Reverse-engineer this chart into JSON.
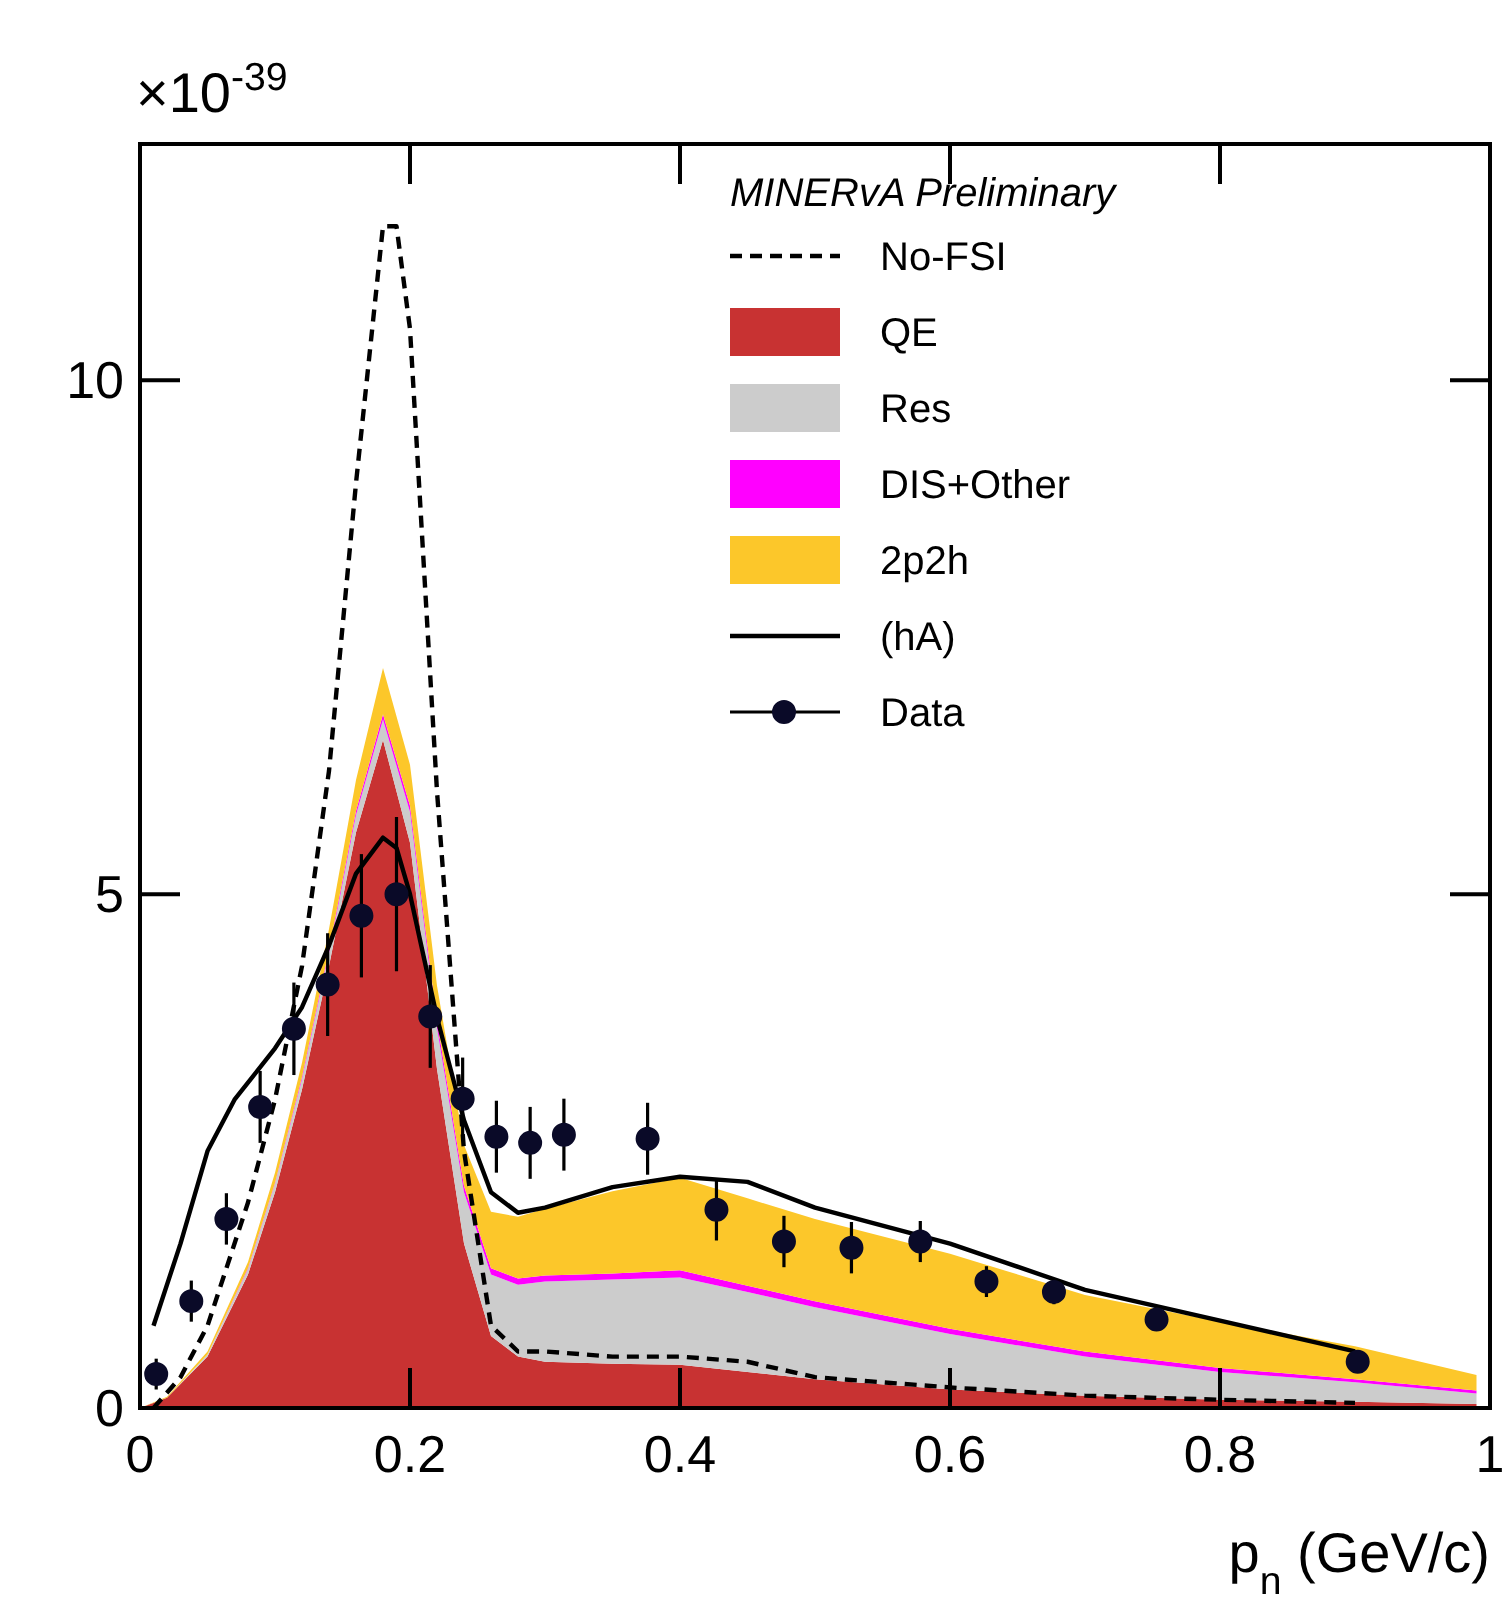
{
  "chart_data": {
    "type": "area",
    "stacked": true,
    "legend_title": "MINERvA Preliminary",
    "xlabel": "p$_{n}$ (GeV/c)",
    "annotations": [
      "×10$^{-39}$"
    ],
    "x": [
      0,
      0.02,
      0.05,
      0.08,
      0.1,
      0.12,
      0.14,
      0.16,
      0.18,
      0.2,
      0.22,
      0.24,
      0.26,
      0.28,
      0.3,
      0.35,
      0.4,
      0.45,
      0.5,
      0.6,
      0.7,
      0.8,
      0.9,
      0.99
    ],
    "xlim": [
      0,
      1
    ],
    "xticks": [
      0,
      0.2,
      0.4,
      0.6,
      0.8,
      1
    ],
    "ylim": [
      0,
      12.3
    ],
    "yticks": [
      0,
      5,
      10
    ],
    "grid": false,
    "legend": "top right",
    "series": [
      {
        "name": "No-FSI",
        "type": "line",
        "line_style": "dashed",
        "color": "#000000",
        "x": [
          0.01,
          0.03,
          0.05,
          0.08,
          0.1,
          0.12,
          0.14,
          0.16,
          0.18,
          0.19,
          0.2,
          0.22,
          0.24,
          0.26,
          0.28,
          0.3,
          0.35,
          0.4,
          0.45,
          0.5,
          0.6,
          0.7,
          0.8,
          0.9
        ],
        "values": [
          0,
          0.3,
          0.8,
          2.0,
          3.0,
          4.3,
          6.2,
          9.0,
          11.5,
          11.5,
          10.5,
          6.0,
          2.5,
          0.8,
          0.55,
          0.55,
          0.5,
          0.5,
          0.45,
          0.3,
          0.2,
          0.12,
          0.08,
          0.05
        ]
      },
      {
        "name": "QE",
        "color": "#c83232",
        "values": [
          0,
          0.1,
          0.5,
          1.3,
          2.1,
          3.1,
          4.3,
          5.6,
          6.5,
          5.5,
          3.3,
          1.6,
          0.7,
          0.5,
          0.45,
          0.43,
          0.42,
          0.35,
          0.28,
          0.18,
          0.12,
          0.08,
          0.06,
          0.04
        ]
      },
      {
        "name": "Res",
        "color": "#cccccc",
        "values": [
          0,
          0,
          0.02,
          0.05,
          0.08,
          0.1,
          0.13,
          0.17,
          0.2,
          0.3,
          0.4,
          0.5,
          0.6,
          0.7,
          0.78,
          0.82,
          0.85,
          0.78,
          0.7,
          0.54,
          0.38,
          0.27,
          0.19,
          0.1
        ]
      },
      {
        "name": "DIS+Other",
        "color": "#ff00ff",
        "values": [
          0,
          0,
          0,
          0.01,
          0.01,
          0.02,
          0.03,
          0.04,
          0.05,
          0.06,
          0.06,
          0.06,
          0.06,
          0.06,
          0.06,
          0.06,
          0.07,
          0.06,
          0.06,
          0.05,
          0.05,
          0.04,
          0.03,
          0.03
        ]
      },
      {
        "name": "2p2h",
        "color": "#fcc72a",
        "values": [
          0,
          0.01,
          0.03,
          0.06,
          0.1,
          0.14,
          0.2,
          0.3,
          0.45,
          0.4,
          0.35,
          0.4,
          0.55,
          0.6,
          0.65,
          0.8,
          0.9,
          0.85,
          0.8,
          0.73,
          0.55,
          0.45,
          0.32,
          0.15
        ]
      },
      {
        "name": "(hA)",
        "type": "line",
        "line_style": "solid",
        "color": "#000000",
        "x": [
          0.01,
          0.03,
          0.05,
          0.07,
          0.1,
          0.12,
          0.14,
          0.16,
          0.18,
          0.19,
          0.2,
          0.22,
          0.24,
          0.26,
          0.28,
          0.3,
          0.35,
          0.4,
          0.45,
          0.5,
          0.6,
          0.7,
          0.8,
          0.9
        ],
        "values": [
          0.8,
          1.6,
          2.5,
          3.0,
          3.5,
          3.9,
          4.5,
          5.2,
          5.55,
          5.45,
          5.0,
          3.8,
          2.8,
          2.1,
          1.9,
          1.95,
          2.15,
          2.25,
          2.2,
          1.95,
          1.6,
          1.15,
          0.85,
          0.55
        ]
      },
      {
        "name": "Data",
        "type": "scatter",
        "marker": "circle",
        "color": "#0a0a28",
        "x": [
          0.012,
          0.038,
          0.064,
          0.089,
          0.114,
          0.139,
          0.164,
          0.19,
          0.215,
          0.239,
          0.264,
          0.289,
          0.314,
          0.376,
          0.427,
          0.477,
          0.527,
          0.578,
          0.627,
          0.677,
          0.753,
          0.902
        ],
        "values": [
          0.33,
          1.04,
          1.84,
          2.93,
          3.69,
          4.12,
          4.79,
          5.0,
          3.81,
          3.01,
          2.64,
          2.58,
          2.66,
          2.62,
          1.93,
          1.62,
          1.56,
          1.62,
          1.23,
          1.13,
          0.86,
          0.45
        ],
        "errors": [
          0.15,
          0.2,
          0.25,
          0.35,
          0.45,
          0.5,
          0.6,
          0.75,
          0.5,
          0.4,
          0.35,
          0.35,
          0.35,
          0.35,
          0.3,
          0.25,
          0.25,
          0.2,
          0.15,
          0.12,
          0.1,
          0.08
        ]
      }
    ]
  }
}
